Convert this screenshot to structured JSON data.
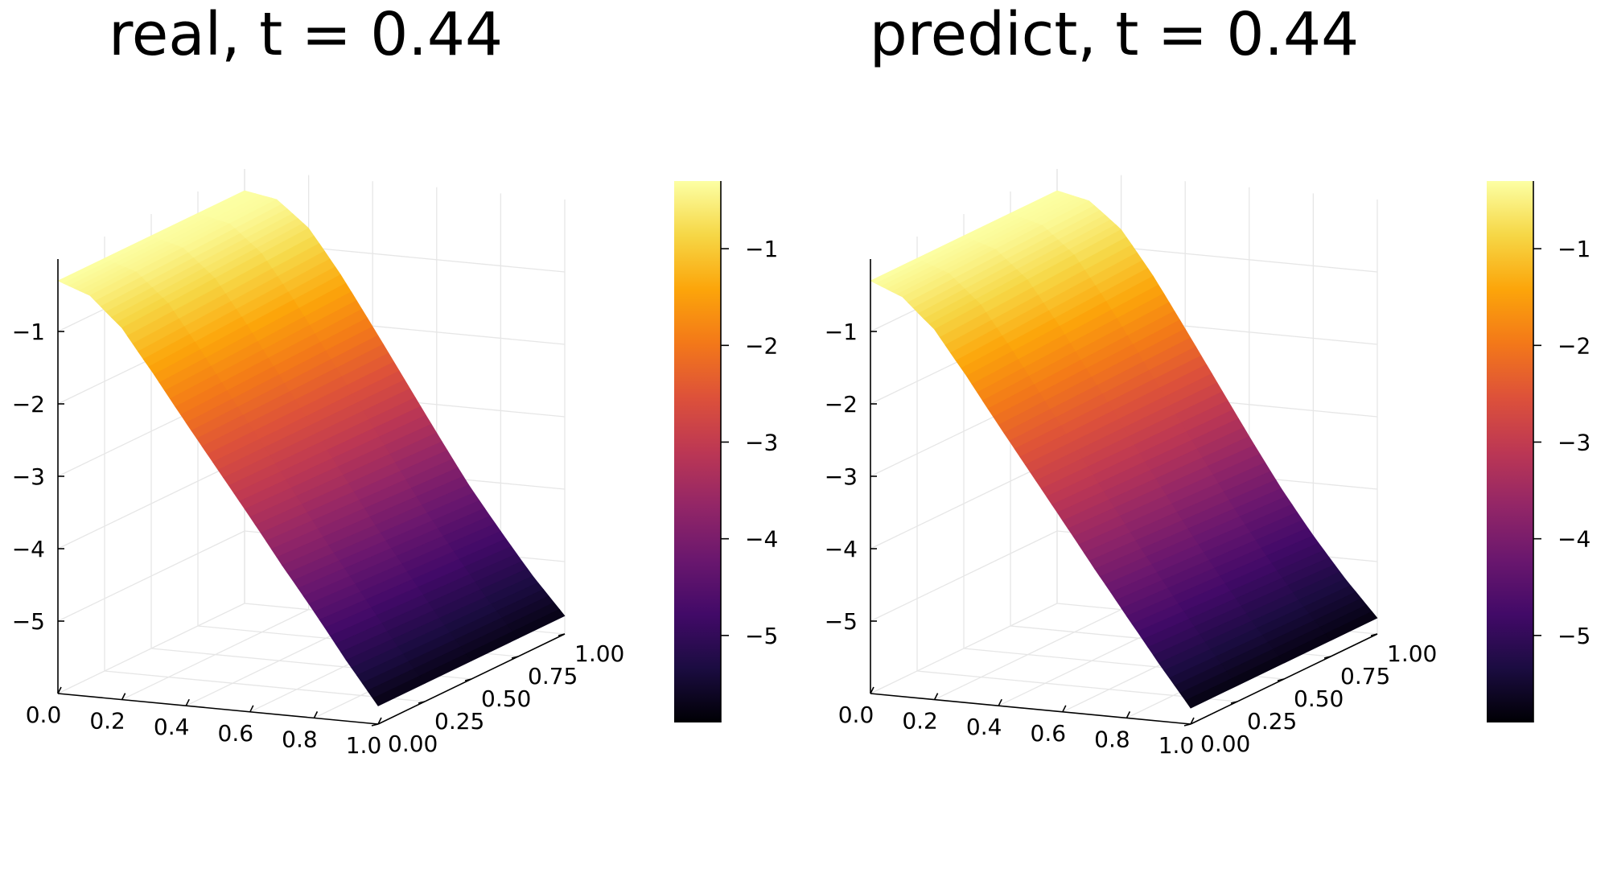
{
  "chart_data": [
    {
      "type": "surface",
      "title": "real, t = 0.44",
      "x_ticks": [
        "0.0",
        "0.2",
        "0.4",
        "0.6",
        "0.8",
        "1.0"
      ],
      "y_ticks": [
        "0.00",
        "0.25",
        "0.50",
        "0.75",
        "1.00"
      ],
      "z_ticks": [
        "−1",
        "−2",
        "−3",
        "−4",
        "−5"
      ],
      "colorbar_ticks": [
        "−1",
        "−2",
        "−3",
        "−4",
        "−5"
      ],
      "xlim": [
        0,
        1
      ],
      "ylim": [
        0,
        1
      ],
      "zlim": [
        -6,
        0
      ],
      "clim": [
        -5.9,
        -0.3
      ],
      "colormap": "inferno",
      "surface_profile": {
        "x": [
          0.0,
          0.1,
          0.2,
          0.3,
          0.4,
          0.5,
          0.6,
          0.7,
          0.8,
          0.9,
          1.0
        ],
        "z": [
          -0.3,
          -0.42,
          -0.8,
          -1.4,
          -2.05,
          -2.7,
          -3.35,
          -4.0,
          -4.6,
          -5.2,
          -5.75
        ]
      },
      "grid": true,
      "legend": "none"
    },
    {
      "type": "surface",
      "title": "predict, t = 0.44",
      "x_ticks": [
        "0.0",
        "0.2",
        "0.4",
        "0.6",
        "0.8",
        "1.0"
      ],
      "y_ticks": [
        "0.00",
        "0.25",
        "0.50",
        "0.75",
        "1.00"
      ],
      "z_ticks": [
        "−1",
        "−2",
        "−3",
        "−4",
        "−5"
      ],
      "colorbar_ticks": [
        "−1",
        "−2",
        "−3",
        "−4",
        "−5"
      ],
      "xlim": [
        0,
        1
      ],
      "ylim": [
        0,
        1
      ],
      "zlim": [
        -6,
        0
      ],
      "clim": [
        -5.9,
        -0.3
      ],
      "colormap": "inferno",
      "surface_profile": {
        "x": [
          0.0,
          0.1,
          0.2,
          0.3,
          0.4,
          0.5,
          0.6,
          0.7,
          0.8,
          0.9,
          1.0
        ],
        "z": [
          -0.3,
          -0.44,
          -0.82,
          -1.42,
          -2.08,
          -2.74,
          -3.4,
          -4.05,
          -4.66,
          -5.24,
          -5.78
        ]
      },
      "grid": true,
      "legend": "none"
    }
  ]
}
